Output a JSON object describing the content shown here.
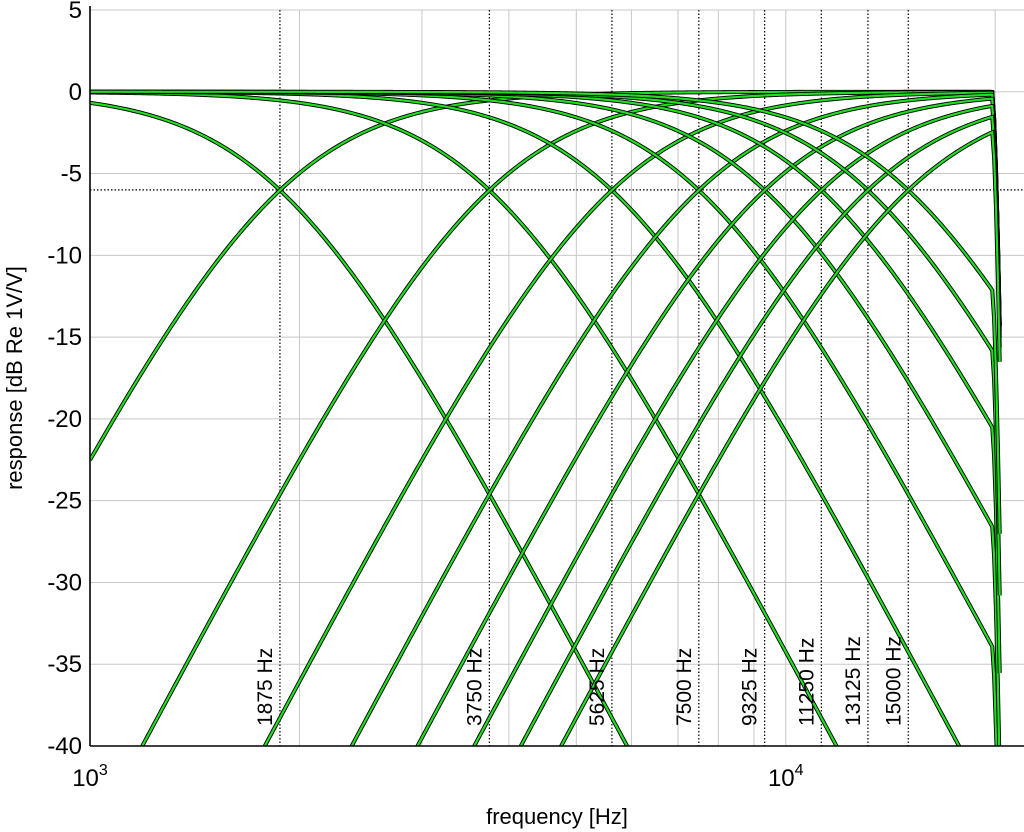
{
  "chart_data": {
    "type": "line",
    "title": "",
    "xlabel": "frequency [Hz]",
    "ylabel": "response [dB Re 1V/V]",
    "xscale": "log",
    "xlim": [
      1000,
      22000
    ],
    "ylim": [
      -40,
      5
    ],
    "x_tick_labels": [
      {
        "value": 1000,
        "base": "10",
        "exp": "3"
      },
      {
        "value": 10000,
        "base": "10",
        "exp": "4"
      }
    ],
    "y_ticks": [
      5,
      0,
      -5,
      -10,
      -15,
      -20,
      -25,
      -30,
      -35,
      -40
    ],
    "y_tick_labels": [
      "5",
      "0",
      "-5",
      "-10",
      "-15",
      "-20",
      "-25",
      "-30",
      "-35",
      "-40"
    ],
    "grid": true,
    "reference_line_db": -6,
    "crossover_frequencies": [
      1875,
      3750,
      5625,
      7500,
      9325,
      11250,
      13125,
      15000
    ],
    "crossover_labels": [
      "1875 Hz",
      "3750 Hz",
      "5625 Hz",
      "7500 Hz",
      "9325 Hz",
      "11250 Hz",
      "13125 Hz",
      "15000 Hz"
    ],
    "filter_order": 4,
    "rolloff_start_hz": 19800,
    "rolloff_end": {
      "x": 20400,
      "y": -19
    },
    "colors": {
      "measured": "#000000",
      "model": "#22dd22",
      "grid": "#c8c8c8",
      "crossover_line": "#000000"
    }
  }
}
